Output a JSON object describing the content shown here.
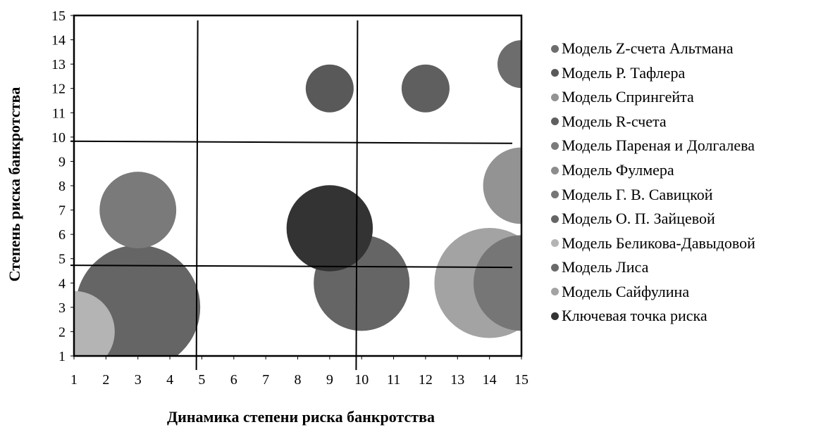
{
  "chart_data": {
    "type": "scatter",
    "variant": "bubble",
    "title": "",
    "xlabel": "Динамика степени риска банкротства",
    "ylabel": "Степень риска банкротства",
    "xlim": [
      1,
      15
    ],
    "ylim": [
      1,
      15
    ],
    "x_ticks": [
      1,
      2,
      3,
      4,
      5,
      6,
      7,
      8,
      9,
      10,
      11,
      12,
      13,
      14,
      15
    ],
    "y_ticks": [
      1,
      2,
      3,
      4,
      5,
      6,
      7,
      8,
      9,
      10,
      11,
      12,
      13,
      14,
      15
    ],
    "grid": false,
    "legend_position": "right",
    "threshold_lines": {
      "vertical": [
        4.85,
        9.85
      ],
      "horizontal": [
        4.7,
        9.8
      ]
    },
    "series": [
      {
        "name": "Модель Z-счета Альтмана",
        "color": "#6d6d6d",
        "points": [
          {
            "x": 15,
            "y": 13,
            "size": 1.0
          }
        ]
      },
      {
        "name": "Модель Р. Тафлера",
        "color": "#595959",
        "points": [
          {
            "x": 9,
            "y": 12,
            "size": 1.0
          }
        ]
      },
      {
        "name": "Модель Спрингейта",
        "color": "#939393",
        "points": [
          {
            "x": 15,
            "y": 8,
            "size": 1.6
          }
        ]
      },
      {
        "name": "Модель R-счета",
        "color": "#5f5f5f",
        "points": [
          {
            "x": 12,
            "y": 12,
            "size": 1.0
          }
        ]
      },
      {
        "name": "Модель Пареная и Долгалева",
        "color": "#7a7a7a",
        "points": [
          {
            "x": 3,
            "y": 7,
            "size": 1.6
          }
        ]
      },
      {
        "name": "Модель Фулмера",
        "color": "#8c8c8c",
        "points": []
      },
      {
        "name": "Модель Г. В. Савицкой",
        "color": "#767676",
        "points": [
          {
            "x": 15,
            "y": 4,
            "size": 2.0
          }
        ]
      },
      {
        "name": "Модель О. П. Зайцевой",
        "color": "#656565",
        "points": [
          {
            "x": 10,
            "y": 4,
            "size": 2.0
          },
          {
            "x": 3,
            "y": 3,
            "size": 2.6
          }
        ]
      },
      {
        "name": "Модель Беликова-Давыдовой",
        "color": "#b4b4b4",
        "points": [
          {
            "x": 1,
            "y": 2,
            "size": 1.7
          }
        ]
      },
      {
        "name": "Модель Лиса",
        "color": "#6a6a6a",
        "points": []
      },
      {
        "name": "Модель Сайфулина",
        "color": "#a3a3a3",
        "points": [
          {
            "x": 14,
            "y": 4,
            "size": 2.3
          }
        ]
      },
      {
        "name": "Ключевая точка риска",
        "color": "#333333",
        "points": [
          {
            "x": 9,
            "y": 6.25,
            "size": 1.8
          }
        ]
      }
    ]
  }
}
